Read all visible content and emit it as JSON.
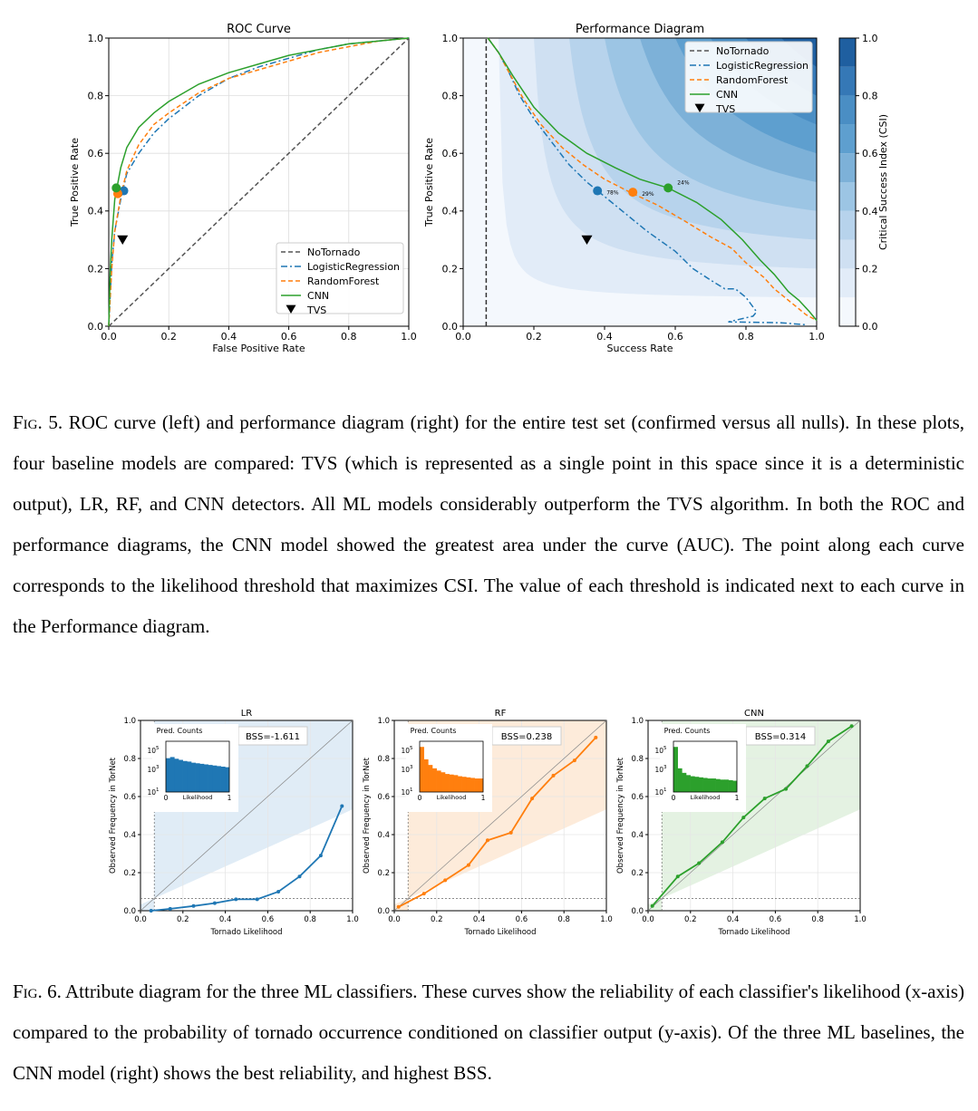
{
  "fig5": {
    "caption_label": "Fig. 5.",
    "caption_text": "ROC curve (left) and performance diagram (right) for the entire test set (confirmed versus all nulls). In these plots, four baseline models are compared: TVS (which is represented as a single point in this space since it is a deterministic output), LR, RF, and CNN detectors. All ML models considerably outperform the TVS algorithm. In both the ROC and performance diagrams, the CNN model showed the greatest area under the curve (AUC). The point along each curve corresponds to the likelihood threshold that maximizes CSI. The value of each threshold is indicated next to each curve in the Performance diagram."
  },
  "fig6": {
    "caption_label": "Fig. 6.",
    "caption_text": "Attribute diagram for the three ML classifiers. These curves show the reliability of each classifier's likelihood (x-axis) compared to the probability of tornado occurrence conditioned on classifier output (y-axis). Of the three ML baselines, the CNN model (right) shows the best reliability, and highest BSS."
  },
  "colors": {
    "lr": "#1f77b4",
    "rf": "#ff7f0e",
    "cnn": "#2ca02c",
    "notornado": "#555555",
    "tvs": "#000000"
  },
  "chart_data": [
    {
      "id": "roc",
      "type": "line",
      "title": "ROC Curve",
      "xlabel": "False Positive Rate",
      "ylabel": "True Positive Rate",
      "xlim": [
        0,
        1
      ],
      "ylim": [
        0,
        1
      ],
      "ticks": [
        "0.0",
        "0.2",
        "0.4",
        "0.6",
        "0.8",
        "1.0"
      ],
      "grid": true,
      "legend_position": "lower-right",
      "legend": [
        "NoTornado",
        "LogisticRegression",
        "RandomForest",
        "CNN",
        "TVS"
      ],
      "series": [
        {
          "name": "NoTornado",
          "style": "dashed",
          "x": [
            0,
            1
          ],
          "y": [
            0,
            1
          ]
        },
        {
          "name": "LogisticRegression",
          "style": "dashdot",
          "x": [
            0,
            0.01,
            0.02,
            0.04,
            0.06,
            0.1,
            0.15,
            0.2,
            0.3,
            0.4,
            0.5,
            0.6,
            0.7,
            0.8,
            0.9,
            1.0
          ],
          "y": [
            0,
            0.22,
            0.33,
            0.44,
            0.53,
            0.6,
            0.67,
            0.72,
            0.8,
            0.86,
            0.9,
            0.93,
            0.96,
            0.98,
            0.99,
            1.0
          ]
        },
        {
          "name": "RandomForest",
          "style": "dashed",
          "x": [
            0,
            0.01,
            0.02,
            0.04,
            0.06,
            0.1,
            0.15,
            0.2,
            0.3,
            0.4,
            0.5,
            0.6,
            0.7,
            0.8,
            0.9,
            1.0
          ],
          "y": [
            0,
            0.2,
            0.33,
            0.45,
            0.54,
            0.63,
            0.7,
            0.74,
            0.81,
            0.86,
            0.89,
            0.92,
            0.95,
            0.97,
            0.99,
            1.0
          ]
        },
        {
          "name": "CNN",
          "style": "solid",
          "x": [
            0,
            0.005,
            0.01,
            0.02,
            0.04,
            0.06,
            0.1,
            0.15,
            0.2,
            0.3,
            0.4,
            0.5,
            0.6,
            0.7,
            0.8,
            0.9,
            1.0
          ],
          "y": [
            0,
            0.2,
            0.3,
            0.44,
            0.55,
            0.62,
            0.69,
            0.74,
            0.78,
            0.84,
            0.88,
            0.91,
            0.94,
            0.96,
            0.98,
            0.99,
            1.0
          ]
        }
      ],
      "points": [
        {
          "series": "LogisticRegression",
          "x": 0.05,
          "y": 0.47
        },
        {
          "series": "RandomForest",
          "x": 0.03,
          "y": 0.46
        },
        {
          "series": "CNN",
          "x": 0.025,
          "y": 0.48
        },
        {
          "series": "TVS",
          "marker": "triangle-down",
          "x": 0.04,
          "y": 0.3
        }
      ]
    },
    {
      "id": "performance",
      "type": "line",
      "title": "Performance Diagram",
      "xlabel": "Success Rate",
      "ylabel": "True Positive Rate",
      "xlim": [
        0,
        1
      ],
      "ylim": [
        0,
        1
      ],
      "ticks": [
        "0.0",
        "0.2",
        "0.4",
        "0.6",
        "0.8",
        "1.0"
      ],
      "background": "filled contours of CSI",
      "colorbar": {
        "label": "Critical Success Index (CSI)",
        "levels": [
          0,
          0.1,
          0.2,
          0.3,
          0.4,
          0.5,
          0.6,
          0.7,
          0.8,
          0.9,
          1.0
        ],
        "ticks": [
          "0.0",
          "0.2",
          "0.4",
          "0.6",
          "0.8",
          "1.0"
        ]
      },
      "legend_position": "upper-right",
      "legend": [
        "NoTornado",
        "LogisticRegression",
        "RandomForest",
        "CNN",
        "TVS"
      ],
      "series": [
        {
          "name": "NoTornado",
          "style": "dashed",
          "x": [
            0.065,
            0.065
          ],
          "y": [
            0,
            1
          ]
        },
        {
          "name": "LogisticRegression",
          "style": "dashdot",
          "x": [
            0.07,
            0.1,
            0.13,
            0.16,
            0.2,
            0.25,
            0.3,
            0.35,
            0.38,
            0.45,
            0.52,
            0.6,
            0.65,
            0.7,
            0.74,
            0.77,
            0.8,
            0.83,
            0.82,
            0.75,
            0.9,
            0.97
          ],
          "y": [
            1.0,
            0.95,
            0.88,
            0.8,
            0.72,
            0.64,
            0.56,
            0.5,
            0.47,
            0.4,
            0.33,
            0.26,
            0.2,
            0.16,
            0.13,
            0.13,
            0.1,
            0.05,
            0.035,
            0.015,
            0.012,
            0.005
          ]
        },
        {
          "name": "RandomForest",
          "style": "dashed",
          "x": [
            0.07,
            0.1,
            0.13,
            0.17,
            0.22,
            0.28,
            0.34,
            0.4,
            0.48,
            0.55,
            0.62,
            0.7,
            0.76,
            0.8,
            0.85,
            0.88,
            0.91,
            0.94,
            0.97,
            1.0
          ],
          "y": [
            1.0,
            0.95,
            0.88,
            0.79,
            0.7,
            0.62,
            0.56,
            0.51,
            0.46,
            0.42,
            0.37,
            0.31,
            0.27,
            0.22,
            0.17,
            0.13,
            0.1,
            0.07,
            0.04,
            0.02
          ]
        },
        {
          "name": "CNN",
          "style": "solid",
          "x": [
            0.07,
            0.1,
            0.14,
            0.2,
            0.27,
            0.35,
            0.43,
            0.5,
            0.58,
            0.66,
            0.73,
            0.79,
            0.84,
            0.88,
            0.92,
            0.95,
            0.98,
            1.0
          ],
          "y": [
            1.0,
            0.95,
            0.87,
            0.76,
            0.67,
            0.6,
            0.55,
            0.51,
            0.48,
            0.43,
            0.37,
            0.3,
            0.23,
            0.18,
            0.12,
            0.09,
            0.05,
            0.02
          ]
        }
      ],
      "points": [
        {
          "series": "LogisticRegression",
          "x": 0.38,
          "y": 0.47,
          "label": "78%"
        },
        {
          "series": "RandomForest",
          "x": 0.48,
          "y": 0.465,
          "label": "29%"
        },
        {
          "series": "CNN",
          "x": 0.58,
          "y": 0.48,
          "label": "24%"
        },
        {
          "series": "TVS",
          "marker": "triangle-down",
          "x": 0.35,
          "y": 0.3
        }
      ]
    },
    {
      "id": "attr_lr",
      "type": "line",
      "title": "LR",
      "color_key": "lr",
      "xlabel": "Tornado Likelihood",
      "ylabel": "Observed Frequency in TorNet",
      "xlim": [
        0,
        1
      ],
      "ylim": [
        0,
        1
      ],
      "ticks": [
        "0.0",
        "0.2",
        "0.4",
        "0.6",
        "0.8",
        "1.0"
      ],
      "bss": "BSS=-1.611",
      "climatology": 0.065,
      "x": [
        0.05,
        0.14,
        0.25,
        0.35,
        0.45,
        0.55,
        0.65,
        0.75,
        0.85,
        0.95
      ],
      "y": [
        0.0,
        0.01,
        0.025,
        0.04,
        0.06,
        0.06,
        0.1,
        0.18,
        0.29,
        0.55
      ],
      "inset": {
        "title": "Pred. Counts",
        "xlabel": "Likelihood",
        "xticks": [
          "0",
          "1"
        ],
        "yticks": [
          "10",
          "10",
          "10"
        ],
        "yexp": [
          "5",
          "3",
          "1"
        ],
        "log10_counts": [
          4.0,
          4.1,
          3.95,
          3.85,
          3.75,
          3.7,
          3.6,
          3.55,
          3.5,
          3.45,
          3.4,
          3.35,
          3.3,
          3.25,
          3.2
        ]
      }
    },
    {
      "id": "attr_rf",
      "type": "line",
      "title": "RF",
      "color_key": "rf",
      "xlabel": "Tornado Likelihood",
      "ylabel": "Observed Frequency in TorNet",
      "xlim": [
        0,
        1
      ],
      "ylim": [
        0,
        1
      ],
      "ticks": [
        "0.0",
        "0.2",
        "0.4",
        "0.6",
        "0.8",
        "1.0"
      ],
      "bss": "BSS=0.238",
      "climatology": 0.065,
      "x": [
        0.02,
        0.14,
        0.24,
        0.35,
        0.44,
        0.55,
        0.65,
        0.75,
        0.85,
        0.95
      ],
      "y": [
        0.02,
        0.09,
        0.16,
        0.24,
        0.37,
        0.41,
        0.59,
        0.71,
        0.79,
        0.91
      ],
      "inset": {
        "title": "Pred. Counts",
        "xlabel": "Likelihood",
        "xticks": [
          "0",
          "1"
        ],
        "yticks": [
          "10",
          "10",
          "10"
        ],
        "yexp": [
          "5",
          "3",
          "1"
        ],
        "log10_counts": [
          5.0,
          3.9,
          3.4,
          3.1,
          2.9,
          2.75,
          2.6,
          2.55,
          2.5,
          2.4,
          2.35,
          2.3,
          2.25,
          2.2,
          2.2
        ]
      }
    },
    {
      "id": "attr_cnn",
      "type": "line",
      "title": "CNN",
      "color_key": "cnn",
      "xlabel": "Tornado Likelihood",
      "ylabel": "Observed Frequency in TorNet",
      "xlim": [
        0,
        1
      ],
      "ylim": [
        0,
        1
      ],
      "ticks": [
        "0.0",
        "0.2",
        "0.4",
        "0.6",
        "0.8",
        "1.0"
      ],
      "bss": "BSS=0.314",
      "climatology": 0.065,
      "x": [
        0.02,
        0.14,
        0.24,
        0.35,
        0.45,
        0.55,
        0.65,
        0.75,
        0.85,
        0.96
      ],
      "y": [
        0.025,
        0.18,
        0.25,
        0.36,
        0.49,
        0.59,
        0.64,
        0.76,
        0.89,
        0.97
      ],
      "inset": {
        "title": "Pred. Counts",
        "xlabel": "Likelihood",
        "xticks": [
          "0",
          "1"
        ],
        "yticks": [
          "10",
          "10",
          "10"
        ],
        "yexp": [
          "5",
          "3",
          "1"
        ],
        "log10_counts": [
          5.0,
          3.1,
          2.7,
          2.5,
          2.4,
          2.35,
          2.3,
          2.25,
          2.2,
          2.2,
          2.15,
          2.1,
          2.1,
          2.05,
          2.0
        ]
      }
    }
  ]
}
